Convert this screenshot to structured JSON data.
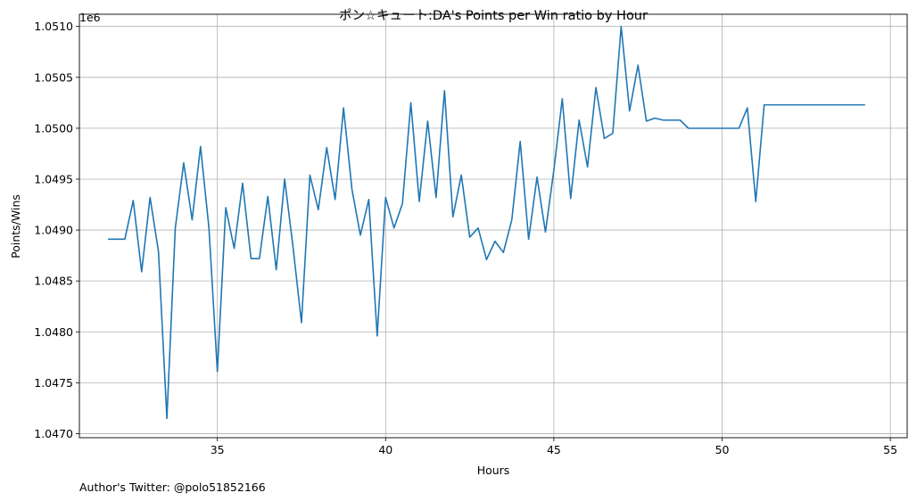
{
  "chart_data": {
    "type": "line",
    "title": "ポン☆キュート:DA's Points per Win ratio by Hour",
    "xlabel": "Hours",
    "ylabel": "Points/Wins",
    "y_offset_label": "1e6",
    "footer": "Author's Twitter: @polo51852166",
    "xlim": [
      30.9,
      55.5
    ],
    "ylim": [
      1.04696,
      1.05112
    ],
    "x_scale": 1,
    "y_scale": 1000000,
    "grid": true,
    "xticks": [
      35,
      40,
      45,
      50,
      55
    ],
    "xtick_labels": [
      "35",
      "40",
      "45",
      "50",
      "55"
    ],
    "yticks": [
      1.047,
      1.0475,
      1.048,
      1.0485,
      1.049,
      1.0495,
      1.05,
      1.0505,
      1.051
    ],
    "ytick_labels": [
      "1.0470",
      "1.0475",
      "1.0480",
      "1.0485",
      "1.0490",
      "1.0495",
      "1.0500",
      "1.0505",
      "1.0510"
    ],
    "line_color": "#1f77b4",
    "series": [
      {
        "x": [
          31.75,
          32.0,
          32.25,
          32.5,
          32.75,
          33.0,
          33.25,
          33.5,
          33.75,
          34.0,
          34.25,
          34.5,
          34.75,
          35.0,
          35.25,
          35.5,
          35.75,
          36.0,
          36.25,
          36.5,
          36.75,
          37.0,
          37.25,
          37.5,
          37.75,
          38.0,
          38.25,
          38.5,
          38.75,
          39.0,
          39.25,
          39.5,
          39.75,
          40.0,
          40.25,
          40.5,
          40.75,
          41.0,
          41.25,
          41.5,
          41.75,
          42.0,
          42.25,
          42.5,
          42.75,
          43.0,
          43.25,
          43.5,
          43.75,
          44.0,
          44.25,
          44.5,
          44.75,
          45.0,
          45.25,
          45.5,
          45.75,
          46.0,
          46.25,
          46.5,
          46.75,
          47.0,
          47.25,
          47.5,
          47.75,
          48.0,
          48.25,
          48.5,
          48.75,
          49.0,
          49.25,
          49.5,
          49.75,
          50.0,
          50.25,
          50.5,
          50.75,
          51.0,
          51.25,
          51.5,
          51.75,
          52.0,
          52.25,
          52.5,
          52.75,
          53.0,
          53.25,
          53.5,
          53.75,
          54.0,
          54.25
        ],
        "y": [
          1.04891,
          1.04891,
          1.04891,
          1.04929,
          1.04859,
          1.04932,
          1.04879,
          1.04715,
          1.04902,
          1.04966,
          1.0491,
          1.04982,
          1.04902,
          1.04761,
          1.04922,
          1.04882,
          1.04946,
          1.04872,
          1.04872,
          1.04933,
          1.04861,
          1.0495,
          1.04883,
          1.04809,
          1.04954,
          1.0492,
          1.04981,
          1.0493,
          1.0502,
          1.0494,
          1.04895,
          1.0493,
          1.04796,
          1.04932,
          1.04902,
          1.04926,
          1.05025,
          1.04928,
          1.05007,
          1.04932,
          1.05037,
          1.04913,
          1.04954,
          1.04893,
          1.04902,
          1.04871,
          1.04889,
          1.04878,
          1.0491,
          1.04987,
          1.04891,
          1.04952,
          1.04898,
          1.04959,
          1.05029,
          1.04931,
          1.05008,
          1.04962,
          1.0504,
          1.0499,
          1.04995,
          1.051,
          1.05017,
          1.05062,
          1.05007,
          1.0501,
          1.05008,
          1.05008,
          1.05008,
          1.05,
          1.05,
          1.05,
          1.05,
          1.05,
          1.05,
          1.05,
          1.0502,
          1.04928,
          1.05023,
          1.05023,
          1.05023,
          1.05023,
          1.05023,
          1.05023,
          1.05023,
          1.05023,
          1.05023,
          1.05023,
          1.05023,
          1.05023,
          1.05023
        ]
      }
    ]
  }
}
